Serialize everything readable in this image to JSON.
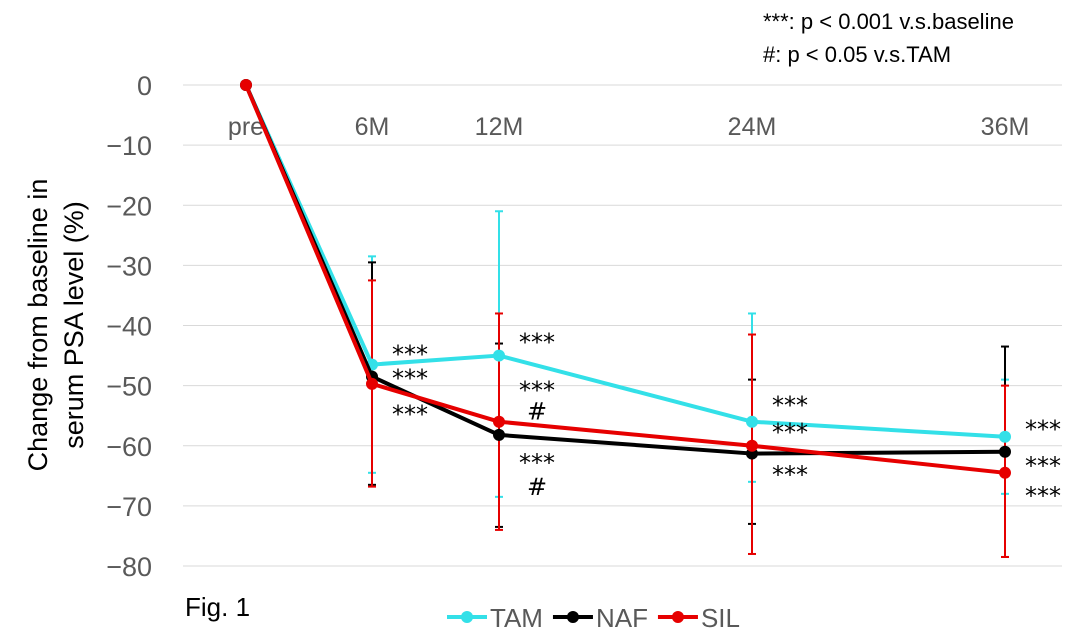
{
  "figure_label": "Fig. 1",
  "annotations": {
    "stars_note": "***: p < 0.001 v.s.baseline",
    "hash_note": "#: p < 0.05 v.s.TAM"
  },
  "chart_data": {
    "type": "line",
    "title": "",
    "xlabel": "",
    "ylabel": "Change from baseline in serum PSA level (%)",
    "ylabel_lines": [
      "Change from baseline in",
      "serum PSA level (%)"
    ],
    "categories": [
      "pre",
      "6M",
      "12M",
      "24M",
      "36M"
    ],
    "x": [
      0,
      6,
      12,
      24,
      36
    ],
    "ylim": [
      -80,
      0
    ],
    "yticks": [
      0,
      -10,
      -20,
      -30,
      -40,
      -50,
      -60,
      -70,
      -80
    ],
    "grid": true,
    "legend_position": "bottom-center",
    "series": [
      {
        "name": "TAM",
        "color": "#33e0e8",
        "values": [
          0,
          -46.5,
          -45,
          -56,
          -58.5
        ],
        "error_high": [
          0,
          -28.5,
          -21,
          -38,
          -49
        ],
        "error_low": [
          0,
          -64.5,
          -68.5,
          -66,
          -68
        ]
      },
      {
        "name": "NAF",
        "color": "#000000",
        "values": [
          0,
          -48.5,
          -58.2,
          -61.3,
          -61
        ],
        "error_high": [
          0,
          -29.5,
          -43,
          -49,
          -43.5
        ],
        "error_low": [
          0,
          -66.5,
          -73.5,
          -73,
          -78.5
        ]
      },
      {
        "name": "SIL",
        "color": "#e60000",
        "values": [
          0,
          -49.7,
          -56,
          -60,
          -64.5
        ],
        "error_high": [
          0,
          -32.5,
          -38,
          -41.5,
          -50
        ],
        "error_low": [
          0,
          -66.8,
          -74,
          -78,
          -78.5
        ]
      }
    ],
    "significance_marks": [
      {
        "x": 6,
        "y": -44.5,
        "text": "***"
      },
      {
        "x": 6,
        "y": -48.5,
        "text": "***"
      },
      {
        "x": 6,
        "y": -54.5,
        "text": "***"
      },
      {
        "x": 12,
        "y": -42.5,
        "text": "***"
      },
      {
        "x": 12,
        "y": -50.5,
        "text": "***"
      },
      {
        "x": 12,
        "y": -54,
        "text": "#"
      },
      {
        "x": 12,
        "y": -62.5,
        "text": "***"
      },
      {
        "x": 12,
        "y": -66.5,
        "text": "#"
      },
      {
        "x": 24,
        "y": -53,
        "text": "***"
      },
      {
        "x": 24,
        "y": -57.5,
        "text": "***"
      },
      {
        "x": 24,
        "y": -64.5,
        "text": "***"
      },
      {
        "x": 36,
        "y": -57,
        "text": "***"
      },
      {
        "x": 36,
        "y": -63,
        "text": "***"
      },
      {
        "x": 36,
        "y": -68,
        "text": "***"
      }
    ]
  }
}
